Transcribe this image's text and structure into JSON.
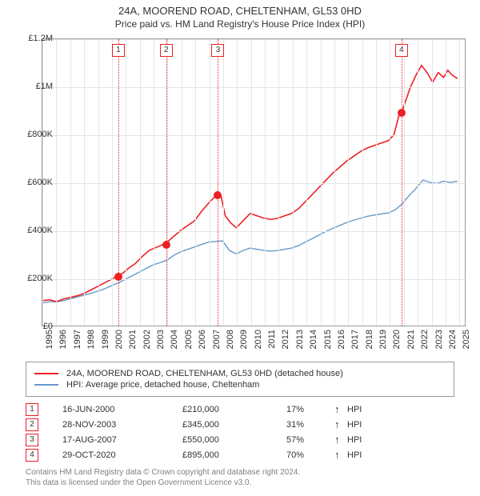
{
  "title": "24A, MOOREND ROAD, CHELTENHAM, GL53 0HD",
  "subtitle": "Price paid vs. HM Land Registry's House Price Index (HPI)",
  "chart": {
    "type": "line",
    "x_year_min": 1995,
    "x_year_max": 2025.5,
    "y_min": 0,
    "y_max": 1200000,
    "y_ticks": [
      0,
      200000,
      400000,
      600000,
      800000,
      1000000,
      1200000
    ],
    "y_tick_labels": [
      "£0",
      "£200K",
      "£400K",
      "£600K",
      "£800K",
      "£1M",
      "£1.2M"
    ],
    "x_ticks": [
      1995,
      1996,
      1997,
      1998,
      1999,
      2000,
      2001,
      2002,
      2003,
      2004,
      2005,
      2006,
      2007,
      2008,
      2009,
      2010,
      2011,
      2012,
      2013,
      2014,
      2015,
      2016,
      2017,
      2018,
      2019,
      2020,
      2021,
      2022,
      2023,
      2024,
      2025
    ],
    "grid_color": "#e6e6e6",
    "background_color": "#ffffff",
    "series": {
      "price_paid": {
        "color": "#ed2024",
        "width": 1.6,
        "points": [
          [
            1995.0,
            105000
          ],
          [
            1995.5,
            108000
          ],
          [
            1996.0,
            100000
          ],
          [
            1996.5,
            112000
          ],
          [
            1997.0,
            118000
          ],
          [
            1997.5,
            125000
          ],
          [
            1998.0,
            135000
          ],
          [
            1998.5,
            150000
          ],
          [
            1999.0,
            165000
          ],
          [
            1999.5,
            180000
          ],
          [
            2000.0,
            195000
          ],
          [
            2000.46,
            210000
          ],
          [
            2000.8,
            220000
          ],
          [
            2001.2,
            240000
          ],
          [
            2001.7,
            260000
          ],
          [
            2002.2,
            290000
          ],
          [
            2002.7,
            315000
          ],
          [
            2003.3,
            330000
          ],
          [
            2003.91,
            345000
          ],
          [
            2004.2,
            360000
          ],
          [
            2004.6,
            380000
          ],
          [
            2005.0,
            400000
          ],
          [
            2005.5,
            420000
          ],
          [
            2006.0,
            440000
          ],
          [
            2006.5,
            480000
          ],
          [
            2007.1,
            520000
          ],
          [
            2007.63,
            550000
          ],
          [
            2007.9,
            540000
          ],
          [
            2008.2,
            460000
          ],
          [
            2008.6,
            430000
          ],
          [
            2009.0,
            410000
          ],
          [
            2009.5,
            440000
          ],
          [
            2010.0,
            470000
          ],
          [
            2010.5,
            460000
          ],
          [
            2011.0,
            450000
          ],
          [
            2011.5,
            445000
          ],
          [
            2012.0,
            450000
          ],
          [
            2012.5,
            460000
          ],
          [
            2013.0,
            470000
          ],
          [
            2013.5,
            490000
          ],
          [
            2014.0,
            520000
          ],
          [
            2014.5,
            550000
          ],
          [
            2015.0,
            580000
          ],
          [
            2015.5,
            610000
          ],
          [
            2016.0,
            640000
          ],
          [
            2016.5,
            665000
          ],
          [
            2017.0,
            690000
          ],
          [
            2017.5,
            710000
          ],
          [
            2018.0,
            730000
          ],
          [
            2018.5,
            745000
          ],
          [
            2019.0,
            755000
          ],
          [
            2019.5,
            765000
          ],
          [
            2020.0,
            775000
          ],
          [
            2020.4,
            800000
          ],
          [
            2020.83,
            895000
          ],
          [
            2021.0,
            900000
          ],
          [
            2021.3,
            950000
          ],
          [
            2021.6,
            1000000
          ],
          [
            2022.0,
            1050000
          ],
          [
            2022.4,
            1090000
          ],
          [
            2022.8,
            1060000
          ],
          [
            2023.2,
            1020000
          ],
          [
            2023.6,
            1060000
          ],
          [
            2024.0,
            1040000
          ],
          [
            2024.3,
            1070000
          ],
          [
            2024.6,
            1050000
          ],
          [
            2025.0,
            1035000
          ]
        ]
      },
      "hpi": {
        "color": "#6699cc",
        "width": 1.4,
        "points": [
          [
            1995.0,
            95000
          ],
          [
            1995.5,
            100000
          ],
          [
            1996.0,
            100000
          ],
          [
            1996.5,
            105000
          ],
          [
            1997.0,
            112000
          ],
          [
            1997.5,
            120000
          ],
          [
            1998.0,
            128000
          ],
          [
            1998.5,
            135000
          ],
          [
            1999.0,
            145000
          ],
          [
            1999.5,
            155000
          ],
          [
            2000.0,
            168000
          ],
          [
            2000.5,
            180000
          ],
          [
            2001.0,
            195000
          ],
          [
            2001.5,
            210000
          ],
          [
            2002.0,
            225000
          ],
          [
            2002.5,
            240000
          ],
          [
            2003.0,
            255000
          ],
          [
            2003.5,
            264000
          ],
          [
            2004.0,
            275000
          ],
          [
            2004.5,
            295000
          ],
          [
            2005.0,
            310000
          ],
          [
            2005.5,
            320000
          ],
          [
            2006.0,
            330000
          ],
          [
            2006.5,
            340000
          ],
          [
            2007.0,
            350000
          ],
          [
            2007.5,
            352000
          ],
          [
            2008.0,
            355000
          ],
          [
            2008.5,
            315000
          ],
          [
            2009.0,
            300000
          ],
          [
            2009.5,
            315000
          ],
          [
            2010.0,
            325000
          ],
          [
            2010.5,
            320000
          ],
          [
            2011.0,
            315000
          ],
          [
            2011.5,
            312000
          ],
          [
            2012.0,
            315000
          ],
          [
            2012.5,
            320000
          ],
          [
            2013.0,
            325000
          ],
          [
            2013.5,
            335000
          ],
          [
            2014.0,
            350000
          ],
          [
            2014.5,
            365000
          ],
          [
            2015.0,
            380000
          ],
          [
            2015.5,
            395000
          ],
          [
            2016.0,
            408000
          ],
          [
            2016.5,
            420000
          ],
          [
            2017.0,
            432000
          ],
          [
            2017.5,
            442000
          ],
          [
            2018.0,
            450000
          ],
          [
            2018.5,
            458000
          ],
          [
            2019.0,
            463000
          ],
          [
            2019.5,
            468000
          ],
          [
            2020.0,
            472000
          ],
          [
            2020.5,
            485000
          ],
          [
            2021.0,
            510000
          ],
          [
            2021.5,
            545000
          ],
          [
            2022.0,
            575000
          ],
          [
            2022.5,
            610000
          ],
          [
            2023.0,
            600000
          ],
          [
            2023.5,
            595000
          ],
          [
            2024.0,
            605000
          ],
          [
            2024.5,
            600000
          ],
          [
            2025.0,
            605000
          ]
        ]
      }
    },
    "sale_markers": [
      {
        "num": "1",
        "year": 2000.46,
        "price": 210000
      },
      {
        "num": "2",
        "year": 2003.91,
        "price": 345000
      },
      {
        "num": "3",
        "year": 2007.63,
        "price": 550000
      },
      {
        "num": "4",
        "year": 2020.83,
        "price": 895000
      }
    ]
  },
  "legend": {
    "row1": {
      "color": "#ed2024",
      "label": "24A, MOOREND ROAD, CHELTENHAM, GL53 0HD (detached house)"
    },
    "row2": {
      "color": "#6699cc",
      "label": "HPI: Average price, detached house, Cheltenham"
    }
  },
  "sales_table": [
    {
      "num": "1",
      "date": "16-JUN-2000",
      "price": "£210,000",
      "pct": "17%",
      "arrow": "↑",
      "hpi": "HPI"
    },
    {
      "num": "2",
      "date": "28-NOV-2003",
      "price": "£345,000",
      "pct": "31%",
      "arrow": "↑",
      "hpi": "HPI"
    },
    {
      "num": "3",
      "date": "17-AUG-2007",
      "price": "£550,000",
      "pct": "57%",
      "arrow": "↑",
      "hpi": "HPI"
    },
    {
      "num": "4",
      "date": "29-OCT-2020",
      "price": "£895,000",
      "pct": "70%",
      "arrow": "↑",
      "hpi": "HPI"
    }
  ],
  "footer": {
    "line1": "Contains HM Land Registry data © Crown copyright and database right 2024.",
    "line2": "This data is licensed under the Open Government Licence v3.0."
  }
}
